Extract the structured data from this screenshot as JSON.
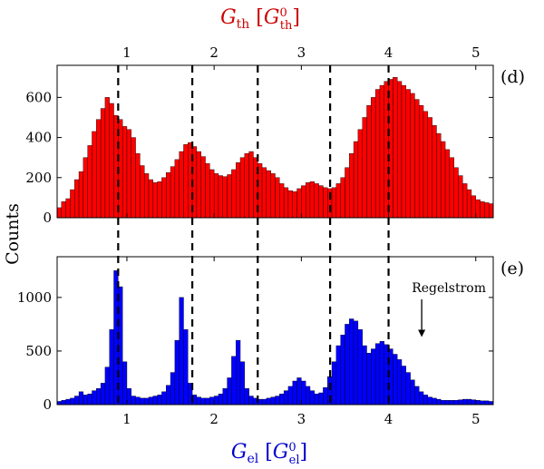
{
  "chart_data": [
    {
      "panel": "(d)",
      "type": "bar",
      "title": "G_th [G_th^0]",
      "top_axis_label": "G_th [G_th^0]",
      "top_axis_color": "#cc0000",
      "xlim": [
        0.2,
        5.2
      ],
      "ylim": [
        0,
        760
      ],
      "xticks": [
        1,
        2,
        3,
        4,
        5
      ],
      "yticks": [
        0,
        200,
        400,
        600
      ],
      "bar_color": "#ff0000",
      "x": [
        0.225,
        0.275,
        0.325,
        0.375,
        0.425,
        0.475,
        0.525,
        0.575,
        0.625,
        0.675,
        0.725,
        0.775,
        0.825,
        0.875,
        0.925,
        0.975,
        1.025,
        1.075,
        1.125,
        1.175,
        1.225,
        1.275,
        1.325,
        1.375,
        1.425,
        1.475,
        1.525,
        1.575,
        1.625,
        1.675,
        1.725,
        1.775,
        1.825,
        1.875,
        1.925,
        1.975,
        2.025,
        2.075,
        2.125,
        2.175,
        2.225,
        2.275,
        2.325,
        2.375,
        2.425,
        2.475,
        2.525,
        2.575,
        2.625,
        2.675,
        2.725,
        2.775,
        2.825,
        2.875,
        2.925,
        2.975,
        3.025,
        3.075,
        3.125,
        3.175,
        3.225,
        3.275,
        3.325,
        3.375,
        3.425,
        3.475,
        3.525,
        3.575,
        3.625,
        3.675,
        3.725,
        3.775,
        3.825,
        3.875,
        3.925,
        3.975,
        4.025,
        4.075,
        4.125,
        4.175,
        4.225,
        4.275,
        4.325,
        4.375,
        4.425,
        4.475,
        4.525,
        4.575,
        4.625,
        4.675,
        4.725,
        4.775,
        4.825,
        4.875,
        4.925,
        4.975,
        5.025,
        5.075,
        5.125,
        5.175
      ],
      "values": [
        50,
        80,
        95,
        140,
        190,
        230,
        300,
        360,
        430,
        490,
        545,
        600,
        570,
        510,
        490,
        455,
        440,
        400,
        320,
        260,
        220,
        190,
        175,
        180,
        200,
        225,
        255,
        290,
        330,
        365,
        375,
        355,
        330,
        305,
        270,
        240,
        220,
        210,
        205,
        215,
        240,
        275,
        300,
        320,
        330,
        300,
        270,
        250,
        235,
        220,
        200,
        170,
        150,
        135,
        130,
        145,
        160,
        175,
        180,
        170,
        160,
        150,
        145,
        150,
        170,
        200,
        250,
        320,
        380,
        440,
        500,
        560,
        600,
        640,
        660,
        680,
        690,
        700,
        680,
        660,
        640,
        620,
        590,
        560,
        530,
        500,
        460,
        420,
        380,
        340,
        300,
        250,
        210,
        170,
        140,
        110,
        90,
        80,
        75,
        70
      ]
    },
    {
      "panel": "(e)",
      "type": "bar",
      "xlabel": "G_el [G_el^0]",
      "xlabel_color": "#0000cc",
      "ylabel": "Counts",
      "xlim": [
        0.2,
        5.2
      ],
      "ylim": [
        0,
        1380
      ],
      "xticks": [
        1,
        2,
        3,
        4,
        5
      ],
      "yticks": [
        0,
        500,
        1000
      ],
      "bar_color": "#0000ff",
      "annotation": {
        "text": "Regelstrom",
        "x": 4.38,
        "y": 580
      },
      "x": [
        0.225,
        0.275,
        0.325,
        0.375,
        0.425,
        0.475,
        0.525,
        0.575,
        0.625,
        0.675,
        0.725,
        0.775,
        0.825,
        0.875,
        0.925,
        0.975,
        1.025,
        1.075,
        1.125,
        1.175,
        1.225,
        1.275,
        1.325,
        1.375,
        1.425,
        1.475,
        1.525,
        1.575,
        1.625,
        1.675,
        1.725,
        1.775,
        1.825,
        1.875,
        1.925,
        1.975,
        2.025,
        2.075,
        2.125,
        2.175,
        2.225,
        2.275,
        2.325,
        2.375,
        2.425,
        2.475,
        2.525,
        2.575,
        2.625,
        2.675,
        2.725,
        2.775,
        2.825,
        2.875,
        2.925,
        2.975,
        3.025,
        3.075,
        3.125,
        3.175,
        3.225,
        3.275,
        3.325,
        3.375,
        3.425,
        3.475,
        3.525,
        3.575,
        3.625,
        3.675,
        3.725,
        3.775,
        3.825,
        3.875,
        3.925,
        3.975,
        4.025,
        4.075,
        4.125,
        4.175,
        4.225,
        4.275,
        4.325,
        4.375,
        4.425,
        4.475,
        4.525,
        4.575,
        4.625,
        4.675,
        4.725,
        4.775,
        4.825,
        4.875,
        4.925,
        4.975,
        5.025,
        5.075,
        5.125,
        5.175
      ],
      "values": [
        30,
        40,
        50,
        60,
        80,
        120,
        90,
        100,
        130,
        150,
        200,
        350,
        700,
        1250,
        1100,
        400,
        150,
        80,
        70,
        60,
        60,
        70,
        80,
        90,
        120,
        180,
        300,
        600,
        1000,
        700,
        200,
        90,
        70,
        60,
        60,
        70,
        80,
        100,
        150,
        250,
        450,
        600,
        400,
        150,
        80,
        60,
        50,
        50,
        60,
        70,
        80,
        100,
        130,
        170,
        220,
        250,
        220,
        170,
        130,
        100,
        110,
        160,
        260,
        400,
        550,
        650,
        750,
        800,
        780,
        700,
        550,
        480,
        520,
        570,
        590,
        560,
        520,
        470,
        420,
        360,
        300,
        230,
        170,
        120,
        90,
        70,
        60,
        50,
        40,
        40,
        40,
        40,
        45,
        50,
        50,
        45,
        40,
        35,
        35,
        30
      ]
    }
  ],
  "reference_lines_x": [
    0.9,
    1.75,
    2.5,
    3.33,
    4.0
  ],
  "colors": {
    "top_axis": "#cc0000",
    "bottom_axis": "#0000cc",
    "dashed": "#000000"
  }
}
